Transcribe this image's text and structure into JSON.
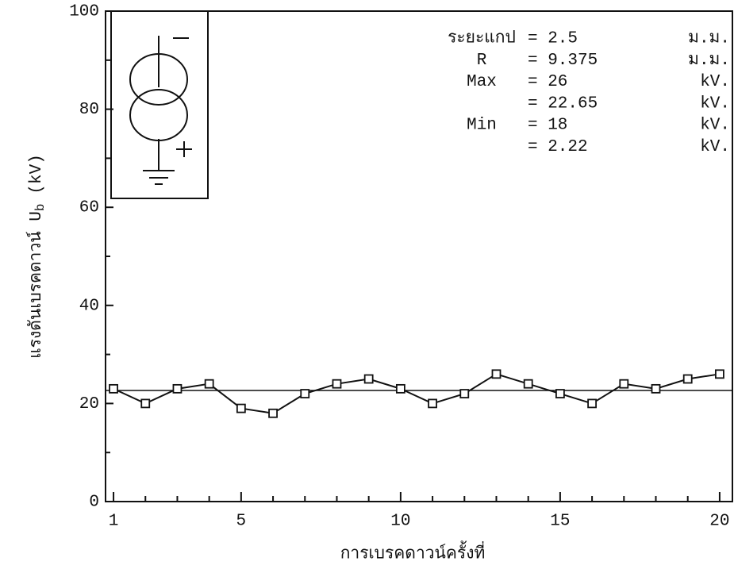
{
  "chart_data": {
    "type": "line",
    "xlabel": "การเบรคดาวน์ครั้งที่",
    "ylabel": {
      "text": "แรงดันเบรคดาวน์ U",
      "subscript": "b",
      "unit": "(kV)"
    },
    "x": [
      1,
      2,
      3,
      4,
      5,
      6,
      7,
      8,
      9,
      10,
      11,
      12,
      13,
      14,
      15,
      16,
      17,
      18,
      19,
      20
    ],
    "series": [
      {
        "color": "#111111",
        "values": [
          23,
          20,
          23,
          24,
          19,
          18,
          22,
          24,
          25,
          23,
          20,
          22,
          26,
          24,
          22,
          20,
          24,
          23,
          25,
          26
        ]
      }
    ],
    "reference_line": 22.65,
    "xlim": [
      0.75,
      20.4
    ],
    "xticks": [
      1,
      5,
      10,
      15,
      20
    ],
    "xminor": [
      2,
      3,
      4,
      6,
      7,
      8,
      9,
      11,
      12,
      13,
      14,
      16,
      17,
      18,
      19
    ],
    "ylim": [
      0,
      100
    ],
    "yticks": [
      0,
      20,
      40,
      60,
      80,
      100
    ],
    "yminor": [
      10,
      30,
      50,
      70,
      90
    ],
    "annotations": [
      {
        "label": "ระยะแกป",
        "value": "= 2.5",
        "unit": "ม.ม."
      },
      {
        "label": "R",
        "value": "= 9.375",
        "unit": "ม.ม."
      },
      {
        "label": "Max",
        "value": "= 26",
        "unit": "kV."
      },
      {
        "value": "= 22.65",
        "unit": "kV."
      },
      {
        "label": "Min",
        "value": "= 18",
        "unit": "kV."
      },
      {
        "value": "= 2.22",
        "unit": "kV."
      }
    ]
  }
}
